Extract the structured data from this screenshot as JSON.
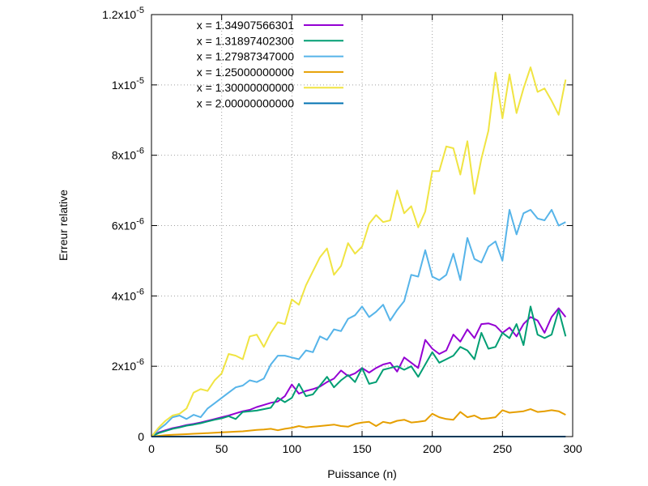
{
  "chart_data": {
    "type": "line",
    "title": "",
    "xlabel": "Puissance (n)",
    "ylabel": "Erreur relative",
    "xlim": [
      0,
      300
    ],
    "ylim": [
      0,
      1.2e-05
    ],
    "grid": true,
    "legend_position": "top-left",
    "x_ticks": [
      {
        "value": 0,
        "label": "0"
      },
      {
        "value": 50,
        "label": "50"
      },
      {
        "value": 100,
        "label": "100"
      },
      {
        "value": 150,
        "label": "150"
      },
      {
        "value": 200,
        "label": "200"
      },
      {
        "value": 250,
        "label": "250"
      },
      {
        "value": 300,
        "label": "300"
      }
    ],
    "y_ticks": [
      {
        "value": 0,
        "mantissa": "0",
        "exponent": ""
      },
      {
        "value": 2e-06,
        "mantissa": "2x10",
        "exponent": "-6"
      },
      {
        "value": 4e-06,
        "mantissa": "4x10",
        "exponent": "-6"
      },
      {
        "value": 6e-06,
        "mantissa": "6x10",
        "exponent": "-6"
      },
      {
        "value": 8e-06,
        "mantissa": "8x10",
        "exponent": "-6"
      },
      {
        "value": 1e-05,
        "mantissa": "1x10",
        "exponent": "-5"
      },
      {
        "value": 1.2e-05,
        "mantissa": "1.2x10",
        "exponent": "-5"
      }
    ],
    "x": [
      0,
      5,
      10,
      15,
      20,
      25,
      30,
      35,
      40,
      45,
      50,
      55,
      60,
      65,
      70,
      75,
      80,
      85,
      90,
      95,
      100,
      105,
      110,
      115,
      120,
      125,
      130,
      135,
      140,
      145,
      150,
      155,
      160,
      165,
      170,
      175,
      180,
      185,
      190,
      195,
      200,
      205,
      210,
      215,
      220,
      225,
      230,
      235,
      240,
      245,
      250,
      255,
      260,
      265,
      270,
      275,
      280,
      285,
      290,
      295
    ],
    "series": [
      {
        "name": "x = 1.34907566301",
        "color": "#9400d3",
        "values": [
          0,
          0.12,
          0.18,
          0.24,
          0.28,
          0.33,
          0.36,
          0.4,
          0.45,
          0.5,
          0.55,
          0.6,
          0.66,
          0.72,
          0.76,
          0.84,
          0.9,
          0.96,
          1.0,
          1.15,
          1.48,
          1.22,
          1.3,
          1.35,
          1.42,
          1.55,
          1.65,
          1.88,
          1.72,
          1.8,
          1.95,
          1.82,
          1.95,
          2.05,
          2.1,
          1.85,
          2.25,
          2.1,
          1.95,
          2.75,
          2.5,
          2.35,
          2.45,
          2.9,
          2.7,
          3.05,
          2.8,
          3.2,
          3.22,
          3.15,
          2.95,
          3.1,
          2.85,
          3.2,
          3.4,
          3.3,
          2.95,
          3.4,
          3.65,
          3.4
        ]
      },
      {
        "name": "x = 1.31897402300",
        "color": "#009e73",
        "values": [
          0,
          0.1,
          0.16,
          0.22,
          0.26,
          0.31,
          0.34,
          0.38,
          0.43,
          0.48,
          0.52,
          0.58,
          0.5,
          0.7,
          0.72,
          0.74,
          0.78,
          0.82,
          1.1,
          0.98,
          1.1,
          1.5,
          1.15,
          1.2,
          1.45,
          1.7,
          1.4,
          1.6,
          1.75,
          1.55,
          1.95,
          1.5,
          1.55,
          1.9,
          1.95,
          2.0,
          1.9,
          2.0,
          1.7,
          2.05,
          2.4,
          2.1,
          2.2,
          2.3,
          2.55,
          2.45,
          2.2,
          2.95,
          2.5,
          2.55,
          2.95,
          2.8,
          3.2,
          2.6,
          3.7,
          2.9,
          2.8,
          2.9,
          3.6,
          2.85
        ]
      },
      {
        "name": "x = 1.27987347000",
        "color": "#56b4e9",
        "values": [
          0,
          0.2,
          0.35,
          0.55,
          0.6,
          0.5,
          0.62,
          0.55,
          0.8,
          0.95,
          1.1,
          1.25,
          1.4,
          1.45,
          1.6,
          1.55,
          1.65,
          2.05,
          2.3,
          2.3,
          2.25,
          2.2,
          2.45,
          2.4,
          2.85,
          2.75,
          3.05,
          3.0,
          3.35,
          3.45,
          3.7,
          3.4,
          3.55,
          3.75,
          3.3,
          3.6,
          3.85,
          4.6,
          4.55,
          5.3,
          4.55,
          4.45,
          4.6,
          5.2,
          4.45,
          5.65,
          5.05,
          4.95,
          5.4,
          5.55,
          5.0,
          6.45,
          5.75,
          6.35,
          6.45,
          6.2,
          6.15,
          6.45,
          6.0,
          6.1
        ]
      },
      {
        "name": "x = 1.25000000000",
        "color": "#e69f00",
        "values": [
          0,
          0.02,
          0.04,
          0.05,
          0.06,
          0.07,
          0.08,
          0.09,
          0.1,
          0.11,
          0.12,
          0.13,
          0.14,
          0.15,
          0.17,
          0.19,
          0.2,
          0.22,
          0.18,
          0.22,
          0.25,
          0.3,
          0.26,
          0.28,
          0.3,
          0.32,
          0.34,
          0.3,
          0.28,
          0.36,
          0.4,
          0.42,
          0.3,
          0.42,
          0.38,
          0.45,
          0.48,
          0.4,
          0.42,
          0.45,
          0.65,
          0.55,
          0.5,
          0.48,
          0.7,
          0.55,
          0.6,
          0.5,
          0.52,
          0.55,
          0.75,
          0.68,
          0.7,
          0.72,
          0.78,
          0.7,
          0.72,
          0.75,
          0.72,
          0.62
        ]
      },
      {
        "name": "x = 1.30000000000",
        "color": "#f0e442",
        "values": [
          0,
          0.25,
          0.45,
          0.6,
          0.65,
          0.8,
          1.25,
          1.35,
          1.3,
          1.6,
          1.8,
          2.35,
          2.3,
          2.2,
          2.85,
          2.9,
          2.55,
          2.95,
          3.25,
          3.2,
          3.9,
          3.75,
          4.3,
          4.7,
          5.1,
          5.35,
          4.6,
          4.85,
          5.5,
          5.2,
          5.4,
          6.05,
          6.3,
          6.1,
          6.15,
          7.0,
          6.35,
          6.55,
          5.95,
          6.4,
          7.55,
          7.55,
          8.25,
          8.2,
          7.45,
          8.4,
          6.9,
          7.9,
          8.7,
          10.35,
          9.05,
          10.3,
          9.2,
          9.9,
          10.5,
          9.8,
          9.9,
          9.55,
          9.15,
          10.15
        ]
      },
      {
        "name": "x = 2.00000000000",
        "color": "#0072b2",
        "values": [
          0,
          0,
          0,
          0,
          0,
          0,
          0,
          0,
          0,
          0,
          0,
          0,
          0,
          0,
          0,
          0,
          0,
          0,
          0,
          0,
          0,
          0,
          0,
          0,
          0,
          0,
          0,
          0,
          0,
          0,
          0,
          0,
          0,
          0,
          0,
          0,
          0,
          0,
          0,
          0,
          0,
          0,
          0,
          0,
          0,
          0,
          0,
          0,
          0,
          0,
          0,
          0,
          0,
          0,
          0,
          0,
          0,
          0,
          0,
          0
        ]
      }
    ],
    "y_value_scale": 1e-06
  }
}
